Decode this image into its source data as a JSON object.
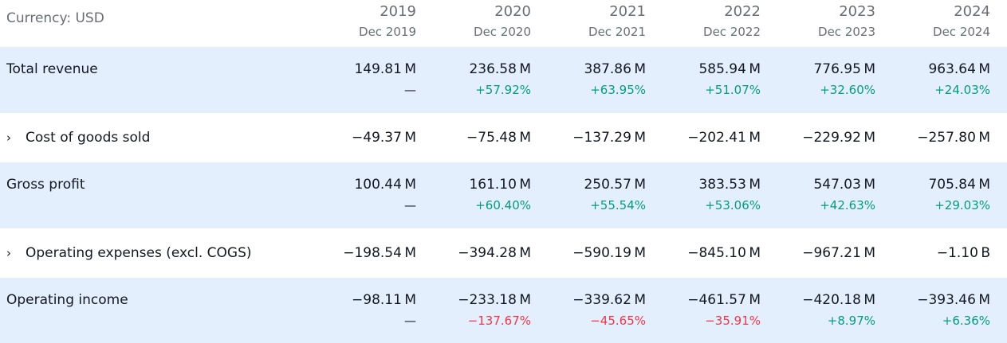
{
  "header": {
    "currency_label": "Currency: USD",
    "columns": [
      {
        "year": "2019",
        "period": "Dec 2019"
      },
      {
        "year": "2020",
        "period": "Dec 2020"
      },
      {
        "year": "2021",
        "period": "Dec 2021"
      },
      {
        "year": "2022",
        "period": "Dec 2022"
      },
      {
        "year": "2023",
        "period": "Dec 2023"
      },
      {
        "year": "2024",
        "period": "Dec 2024"
      }
    ]
  },
  "colors": {
    "highlight_row_bg": "#e3effd",
    "positive": "#089981",
    "negative": "#f23645",
    "muted_text": "#6a6d78"
  },
  "rows": [
    {
      "label": "Total revenue",
      "expandable": false,
      "highlight": true,
      "values": [
        "149.81 M",
        "236.58 M",
        "387.86 M",
        "585.94 M",
        "776.95 M",
        "963.64 M"
      ],
      "changes": [
        {
          "text": "—",
          "dir": "none"
        },
        {
          "text": "+57.92%",
          "dir": "pos"
        },
        {
          "text": "+63.95%",
          "dir": "pos"
        },
        {
          "text": "+51.07%",
          "dir": "pos"
        },
        {
          "text": "+32.60%",
          "dir": "pos"
        },
        {
          "text": "+24.03%",
          "dir": "pos"
        }
      ]
    },
    {
      "label": "Cost of goods sold",
      "expandable": true,
      "expand_icon": "›",
      "highlight": false,
      "values": [
        "−49.37 M",
        "−75.48 M",
        "−137.29 M",
        "−202.41 M",
        "−229.92 M",
        "−257.80 M"
      ]
    },
    {
      "label": "Gross profit",
      "expandable": false,
      "highlight": true,
      "values": [
        "100.44 M",
        "161.10 M",
        "250.57 M",
        "383.53 M",
        "547.03 M",
        "705.84 M"
      ],
      "changes": [
        {
          "text": "—",
          "dir": "none"
        },
        {
          "text": "+60.40%",
          "dir": "pos"
        },
        {
          "text": "+55.54%",
          "dir": "pos"
        },
        {
          "text": "+53.06%",
          "dir": "pos"
        },
        {
          "text": "+42.63%",
          "dir": "pos"
        },
        {
          "text": "+29.03%",
          "dir": "pos"
        }
      ]
    },
    {
      "label": "Operating expenses (excl. COGS)",
      "expandable": true,
      "expand_icon": "›",
      "highlight": false,
      "values": [
        "−198.54 M",
        "−394.28 M",
        "−590.19 M",
        "−845.10 M",
        "−967.21 M",
        "−1.10 B"
      ]
    },
    {
      "label": "Operating income",
      "expandable": false,
      "highlight": true,
      "values": [
        "−98.11 M",
        "−233.18 M",
        "−339.62 M",
        "−461.57 M",
        "−420.18 M",
        "−393.46 M"
      ],
      "changes": [
        {
          "text": "—",
          "dir": "none"
        },
        {
          "text": "−137.67%",
          "dir": "neg"
        },
        {
          "text": "−45.65%",
          "dir": "neg"
        },
        {
          "text": "−35.91%",
          "dir": "neg"
        },
        {
          "text": "+8.97%",
          "dir": "pos"
        },
        {
          "text": "+6.36%",
          "dir": "pos"
        }
      ]
    }
  ]
}
